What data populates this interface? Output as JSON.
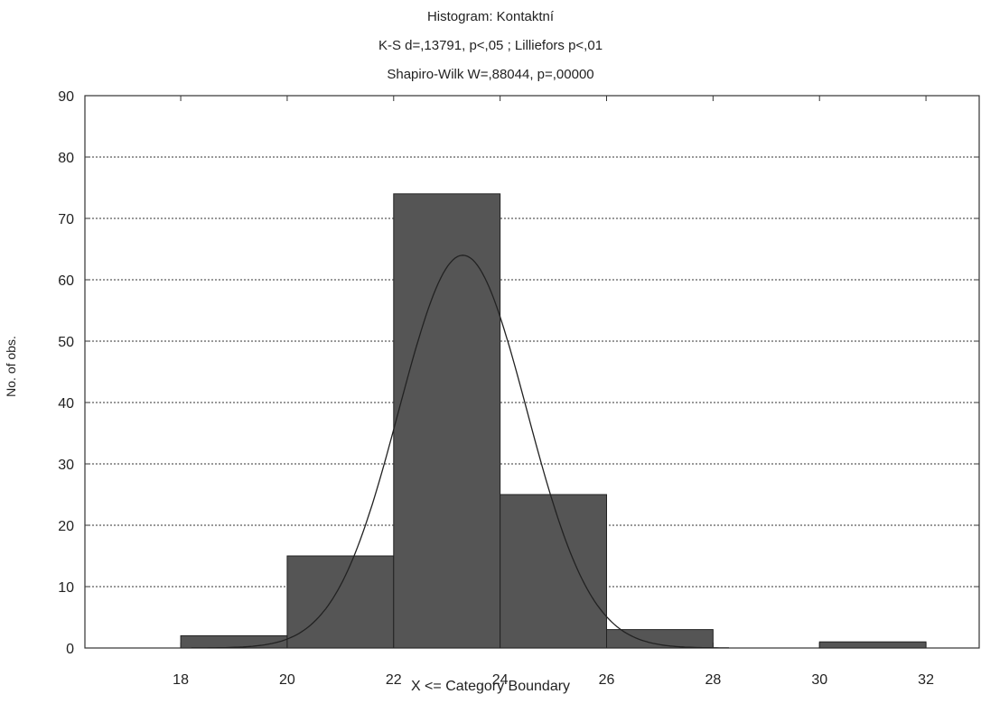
{
  "chart_data": {
    "type": "bar",
    "title": "Histogram: Kontaktní",
    "subtitle_lines": [
      "K-S d=,13791, p<,05 ; Lilliefors p<,01",
      "Shapiro-Wilk W=,88044, p=,00000"
    ],
    "xlabel": "X <= Category Boundary",
    "ylabel": "No. of obs.",
    "xlim": [
      16.2,
      33
    ],
    "ylim": [
      0,
      90
    ],
    "xticks": [
      18,
      20,
      22,
      24,
      26,
      28,
      30,
      32
    ],
    "yticks": [
      0,
      10,
      20,
      30,
      40,
      50,
      60,
      70,
      80,
      90
    ],
    "grid": true,
    "bins": [
      {
        "from": 18,
        "to": 20,
        "value": 2
      },
      {
        "from": 20,
        "to": 22,
        "value": 15
      },
      {
        "from": 22,
        "to": 24,
        "value": 74
      },
      {
        "from": 24,
        "to": 26,
        "value": 25
      },
      {
        "from": 26,
        "to": 28,
        "value": 3
      },
      {
        "from": 28,
        "to": 30,
        "value": 0
      },
      {
        "from": 30,
        "to": 32,
        "value": 1
      }
    ],
    "normal_curve": {
      "mean": 23.3,
      "sd": 1.2,
      "peak": 64,
      "x_range": [
        18.2,
        28.3
      ]
    },
    "bar_color": "#555555",
    "curve_color": "#222222"
  }
}
